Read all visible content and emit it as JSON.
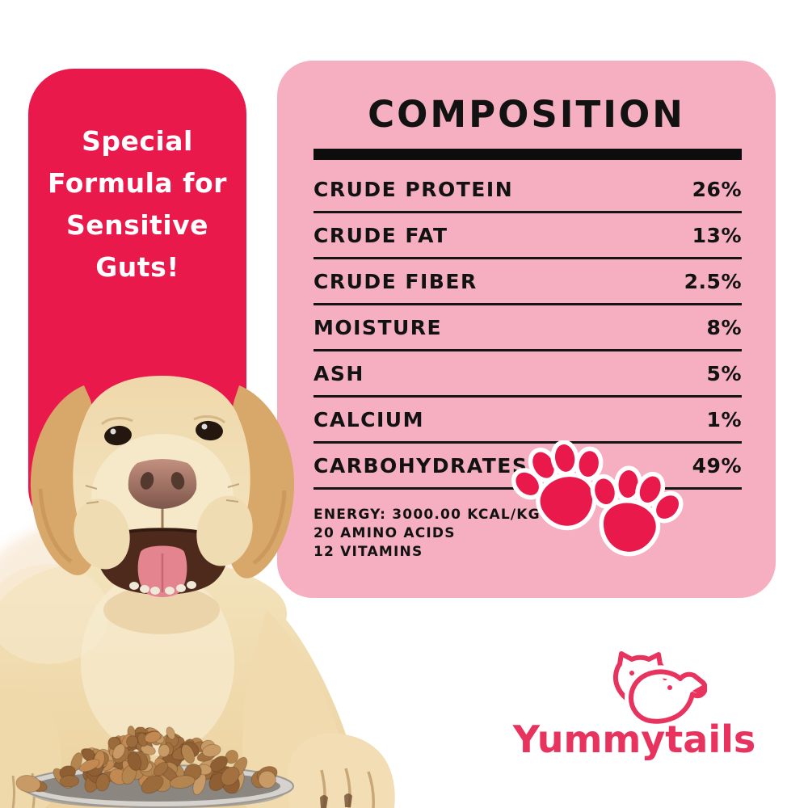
{
  "badge": {
    "lines": [
      "Special",
      "Formula for",
      "Sensitive",
      "Guts!"
    ],
    "full_text": "Special Formula for Sensitive Guts!",
    "bg_color": "#E9194B",
    "text_color": "#FFFFFF"
  },
  "composition": {
    "title": "COMPOSITION",
    "bg_color": "#F5AFC1",
    "text_color": "#121212",
    "rows": [
      {
        "label": "CRUDE PROTEIN",
        "value": "26%"
      },
      {
        "label": "CRUDE FAT",
        "value": "13%"
      },
      {
        "label": "CRUDE FIBER",
        "value": "2.5%"
      },
      {
        "label": "MOISTURE",
        "value": "8%"
      },
      {
        "label": "ASH",
        "value": "5%"
      },
      {
        "label": "CALCIUM",
        "value": "1%"
      },
      {
        "label": "CARBOHYDRATES",
        "value": "49%"
      }
    ],
    "footnotes": [
      "ENERGY: 3000.00 KCAL/KG",
      "20 AMINO ACIDS",
      "12 VITAMINS"
    ]
  },
  "brand": {
    "name": "Yummytails",
    "color": "#E8335F"
  },
  "icons": {
    "paw_prints": "two-paw-prints-sticker",
    "brand_mark": "cat-and-dog-heads-outline",
    "photo": "labrador-dog-with-bowl-of-kibble"
  },
  "colors": {
    "accent_red": "#E9194B",
    "panel_pink": "#F5AFC1",
    "table_black": "#0D0D0D",
    "background": "#FFFFFF"
  }
}
